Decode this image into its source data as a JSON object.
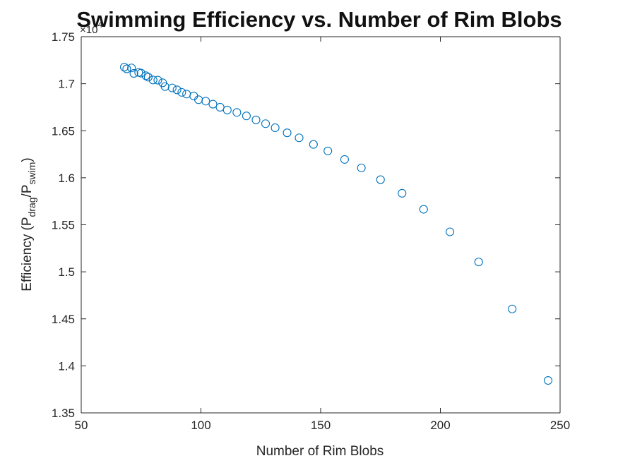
{
  "chart_data": {
    "type": "scatter",
    "title": "Swimming Efficiency vs. Number of Rim Blobs",
    "xlabel": "Number of Rim Blobs",
    "ylabel": {
      "prefix": "Efficiency (P",
      "sub1": "drag",
      "mid": "/P",
      "sub2": "swim",
      "suffix": ")"
    },
    "y_multiplier": {
      "base": "×10",
      "exp": "4"
    },
    "xlim": [
      50,
      250
    ],
    "ylim": [
      1.35,
      1.75
    ],
    "xticks": [
      50,
      100,
      150,
      200,
      250
    ],
    "xtick_labels": [
      "50",
      "100",
      "150",
      "200",
      "250"
    ],
    "yticks": [
      1.35,
      1.4,
      1.45,
      1.5,
      1.55,
      1.6,
      1.65,
      1.7,
      1.75
    ],
    "ytick_labels": [
      "1.35",
      "1.4",
      "1.45",
      "1.5",
      "1.55",
      "1.6",
      "1.65",
      "1.7",
      "1.75"
    ],
    "grid": false,
    "marker": "open-circle",
    "color": "#0072BD",
    "x": [
      68,
      69,
      71,
      72,
      74,
      75,
      77,
      78,
      80,
      82,
      84,
      85,
      88,
      90,
      92,
      94,
      97,
      99,
      102,
      105,
      108,
      111,
      115,
      119,
      123,
      127,
      131,
      136,
      141,
      147,
      153,
      160,
      167,
      175,
      184,
      193,
      204,
      216,
      230,
      245
    ],
    "y": [
      1.7176,
      1.7158,
      1.7168,
      1.711,
      1.712,
      1.7113,
      1.7085,
      1.707,
      1.704,
      1.7038,
      1.701,
      1.697,
      1.6955,
      1.6935,
      1.6908,
      1.689,
      1.687,
      1.683,
      1.6815,
      1.6783,
      1.675,
      1.672,
      1.6695,
      1.6658,
      1.6615,
      1.6575,
      1.6532,
      1.6478,
      1.6425,
      1.6355,
      1.6285,
      1.6195,
      1.6105,
      1.598,
      1.5835,
      1.5665,
      1.5425,
      1.5105,
      1.4605,
      1.3845
    ]
  }
}
